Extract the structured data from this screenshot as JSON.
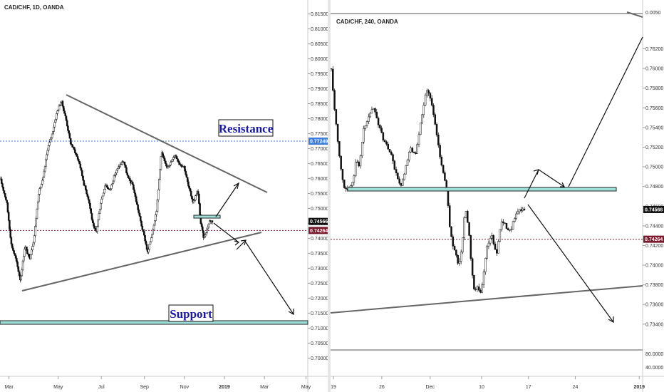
{
  "charts": [
    {
      "type": "candlestick",
      "title": "CAD/CHF, 1D, OANDA",
      "y_ticks": [
        "0.81500",
        "0.81000",
        "0.80500",
        "0.80000",
        "0.79500",
        "0.79000",
        "0.78500",
        "0.78000",
        "0.77500",
        "0.77000",
        "0.76500",
        "0.76000",
        "0.75500",
        "0.75000",
        "0.74500",
        "0.74000",
        "0.73500",
        "0.73000",
        "0.72500",
        "0.72000",
        "0.71500",
        "0.71000",
        "0.70500",
        "0.70000"
      ],
      "ylim": [
        0.6977,
        0.8168
      ],
      "x_ticks": [
        {
          "label": "Mar",
          "t": 0.02
        },
        {
          "label": "May",
          "t": 0.18
        },
        {
          "label": "Jul",
          "t": 0.32
        },
        {
          "label": "Sep",
          "t": 0.46
        },
        {
          "label": "Nov",
          "t": 0.59
        },
        {
          "label": "2019",
          "t": 0.72,
          "bold": true
        },
        {
          "label": "Mar",
          "t": 0.85
        },
        {
          "label": "May",
          "t": 0.985
        }
      ],
      "price_tags": [
        {
          "label": "0.77249",
          "value": 0.77249,
          "color": "#3c7ddb",
          "line": "dotted"
        },
        {
          "label": "0.74566",
          "value": 0.74566,
          "color": "#111111",
          "line": "none"
        },
        {
          "label": "0.74264",
          "value": 0.74264,
          "color": "#7a1a2e",
          "line": "dotted"
        }
      ],
      "annotations": {
        "resistance": "Resistance",
        "support": "Support"
      },
      "series_path": [
        [
          0.0,
          0.7595
        ],
        [
          0.02,
          0.752
        ],
        [
          0.035,
          0.738
        ],
        [
          0.05,
          0.733
        ],
        [
          0.065,
          0.726
        ],
        [
          0.08,
          0.7375
        ],
        [
          0.095,
          0.733
        ],
        [
          0.11,
          0.74
        ],
        [
          0.125,
          0.755
        ],
        [
          0.14,
          0.76
        ],
        [
          0.155,
          0.77
        ],
        [
          0.17,
          0.775
        ],
        [
          0.185,
          0.782
        ],
        [
          0.2,
          0.786
        ],
        [
          0.215,
          0.78
        ],
        [
          0.23,
          0.772
        ],
        [
          0.245,
          0.769
        ],
        [
          0.26,
          0.765
        ],
        [
          0.275,
          0.758
        ],
        [
          0.29,
          0.753
        ],
        [
          0.305,
          0.744
        ],
        [
          0.315,
          0.742
        ],
        [
          0.33,
          0.752
        ],
        [
          0.345,
          0.758
        ],
        [
          0.36,
          0.756
        ],
        [
          0.375,
          0.761
        ],
        [
          0.39,
          0.764
        ],
        [
          0.405,
          0.766
        ],
        [
          0.42,
          0.76
        ],
        [
          0.435,
          0.758
        ],
        [
          0.45,
          0.751
        ],
        [
          0.465,
          0.744
        ],
        [
          0.475,
          0.74
        ],
        [
          0.485,
          0.735
        ],
        [
          0.5,
          0.742
        ],
        [
          0.515,
          0.75
        ],
        [
          0.53,
          0.769
        ],
        [
          0.545,
          0.764
        ],
        [
          0.56,
          0.765
        ],
        [
          0.575,
          0.768
        ],
        [
          0.59,
          0.765
        ],
        [
          0.605,
          0.764
        ],
        [
          0.62,
          0.757
        ],
        [
          0.635,
          0.752
        ],
        [
          0.65,
          0.756
        ],
        [
          0.66,
          0.745
        ],
        [
          0.67,
          0.74
        ],
        [
          0.68,
          0.743
        ],
        [
          0.69,
          0.746
        ],
        [
          0.698,
          0.7457
        ]
      ]
    },
    {
      "type": "candlestick",
      "title": "CAD/CHF, 240, OANDA",
      "y_ticks": [
        "0.76200",
        "0.76000",
        "0.75800",
        "0.75600",
        "0.75400",
        "0.75200",
        "0.75000",
        "0.74800",
        "0.74600",
        "0.74400",
        "0.74200",
        "0.74000",
        "0.73800",
        "0.73600",
        "0.73400"
      ],
      "top_label": "0.0050",
      "bottom_labels": [
        "80.0000",
        "40.0000"
      ],
      "ylim": [
        0.7329,
        0.7632
      ],
      "x_ticks": [
        {
          "label": "19",
          "t": 0.0
        },
        {
          "label": "26",
          "t": 0.155
        },
        {
          "label": "Dec",
          "t": 0.31
        },
        {
          "label": "10",
          "t": 0.475
        },
        {
          "label": "17",
          "t": 0.625
        },
        {
          "label": "24",
          "t": 0.775
        },
        {
          "label": "2019",
          "t": 0.98,
          "bold": true
        }
      ],
      "price_tags": [
        {
          "label": "0.74566",
          "value": 0.74566,
          "color": "#111111",
          "line": "none"
        },
        {
          "label": "0.74264",
          "value": 0.74264,
          "color": "#7a1a2e",
          "line": "dotted"
        }
      ],
      "series_path": [
        [
          0.0,
          0.76
        ],
        [
          0.01,
          0.756
        ],
        [
          0.02,
          0.753
        ],
        [
          0.03,
          0.75
        ],
        [
          0.04,
          0.748
        ],
        [
          0.055,
          0.7475
        ],
        [
          0.07,
          0.7485
        ],
        [
          0.08,
          0.751
        ],
        [
          0.09,
          0.75
        ],
        [
          0.105,
          0.754
        ],
        [
          0.12,
          0.755
        ],
        [
          0.135,
          0.756
        ],
        [
          0.15,
          0.7545
        ],
        [
          0.165,
          0.753
        ],
        [
          0.18,
          0.752
        ],
        [
          0.195,
          0.751
        ],
        [
          0.21,
          0.749
        ],
        [
          0.225,
          0.748
        ],
        [
          0.24,
          0.75
        ],
        [
          0.255,
          0.752
        ],
        [
          0.27,
          0.751
        ],
        [
          0.285,
          0.754
        ],
        [
          0.3,
          0.757
        ],
        [
          0.31,
          0.758
        ],
        [
          0.325,
          0.756
        ],
        [
          0.34,
          0.753
        ],
        [
          0.355,
          0.75
        ],
        [
          0.37,
          0.748
        ],
        [
          0.38,
          0.744
        ],
        [
          0.39,
          0.742
        ],
        [
          0.4,
          0.741
        ],
        [
          0.41,
          0.74
        ],
        [
          0.42,
          0.742
        ],
        [
          0.43,
          0.746
        ],
        [
          0.44,
          0.744
        ],
        [
          0.45,
          0.74
        ],
        [
          0.46,
          0.737
        ],
        [
          0.47,
          0.738
        ],
        [
          0.48,
          0.737
        ],
        [
          0.49,
          0.7395
        ],
        [
          0.5,
          0.742
        ],
        [
          0.515,
          0.743
        ],
        [
          0.53,
          0.741
        ],
        [
          0.545,
          0.7445
        ],
        [
          0.56,
          0.744
        ],
        [
          0.575,
          0.7435
        ],
        [
          0.59,
          0.745
        ],
        [
          0.605,
          0.7455
        ],
        [
          0.62,
          0.7457
        ]
      ]
    }
  ]
}
